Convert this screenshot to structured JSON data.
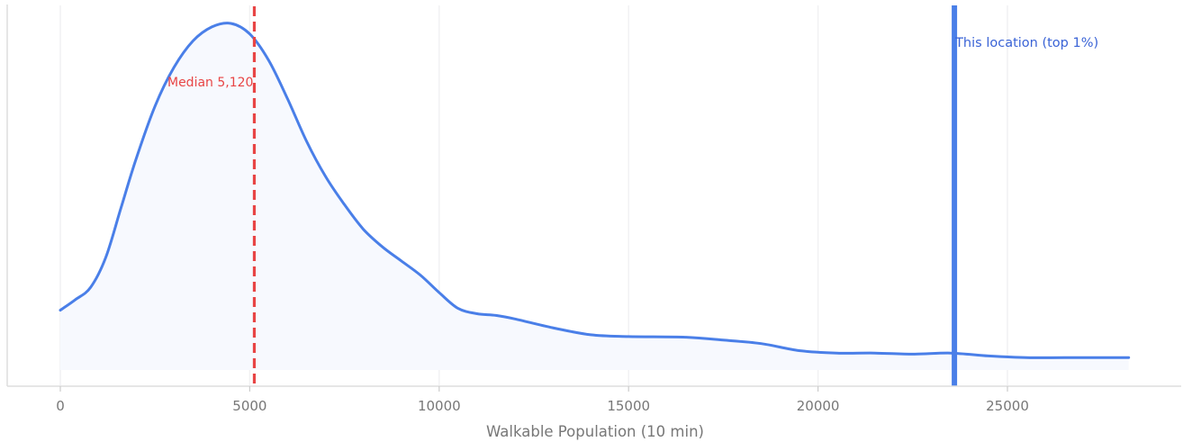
{
  "chart_data": {
    "type": "area",
    "xlabel": "Walkable Population (10 min)",
    "ylabel": "",
    "xlim": [
      -1400,
      29600
    ],
    "x_ticks": [
      "0",
      "5000",
      "10000",
      "15000",
      "20000",
      "25000"
    ],
    "x_tick_values": [
      0,
      5000,
      10000,
      15000,
      20000,
      25000
    ],
    "grid": true,
    "series": [
      {
        "x": [
          0,
          400,
          800,
          1200,
          1600,
          2000,
          2500,
          3000,
          3500,
          4000,
          4500,
          5000,
          5500,
          6000,
          6500,
          7000,
          7500,
          8000,
          8500,
          9000,
          9500,
          10000,
          10500,
          11000,
          11500,
          12000,
          13000,
          14000,
          15000,
          16500,
          17500,
          18500,
          19500,
          20500,
          21500,
          22500,
          23500,
          24500,
          25500,
          26500,
          27500,
          28200
        ],
        "y": [
          0.17,
          0.2,
          0.235,
          0.32,
          0.46,
          0.6,
          0.75,
          0.86,
          0.935,
          0.975,
          0.985,
          0.955,
          0.88,
          0.77,
          0.65,
          0.55,
          0.47,
          0.4,
          0.35,
          0.31,
          0.27,
          0.22,
          0.175,
          0.16,
          0.155,
          0.145,
          0.12,
          0.1,
          0.095,
          0.093,
          0.085,
          0.075,
          0.055,
          0.048,
          0.048,
          0.045,
          0.048,
          0.04,
          0.035,
          0.035,
          0.035,
          0.035
        ]
      }
    ],
    "reference_lines": [
      {
        "x": 5120,
        "label": "Median 5,120",
        "style": "dashed",
        "color": "#e84545"
      },
      {
        "x": 23600,
        "label": "This location (top 1%)",
        "style": "solid",
        "color": "#4a7fe8"
      }
    ],
    "colors": {
      "curve": "#4a7fe8",
      "fill": "#f7f9fe",
      "median": "#e84545",
      "location": "#4a7fe8"
    }
  }
}
